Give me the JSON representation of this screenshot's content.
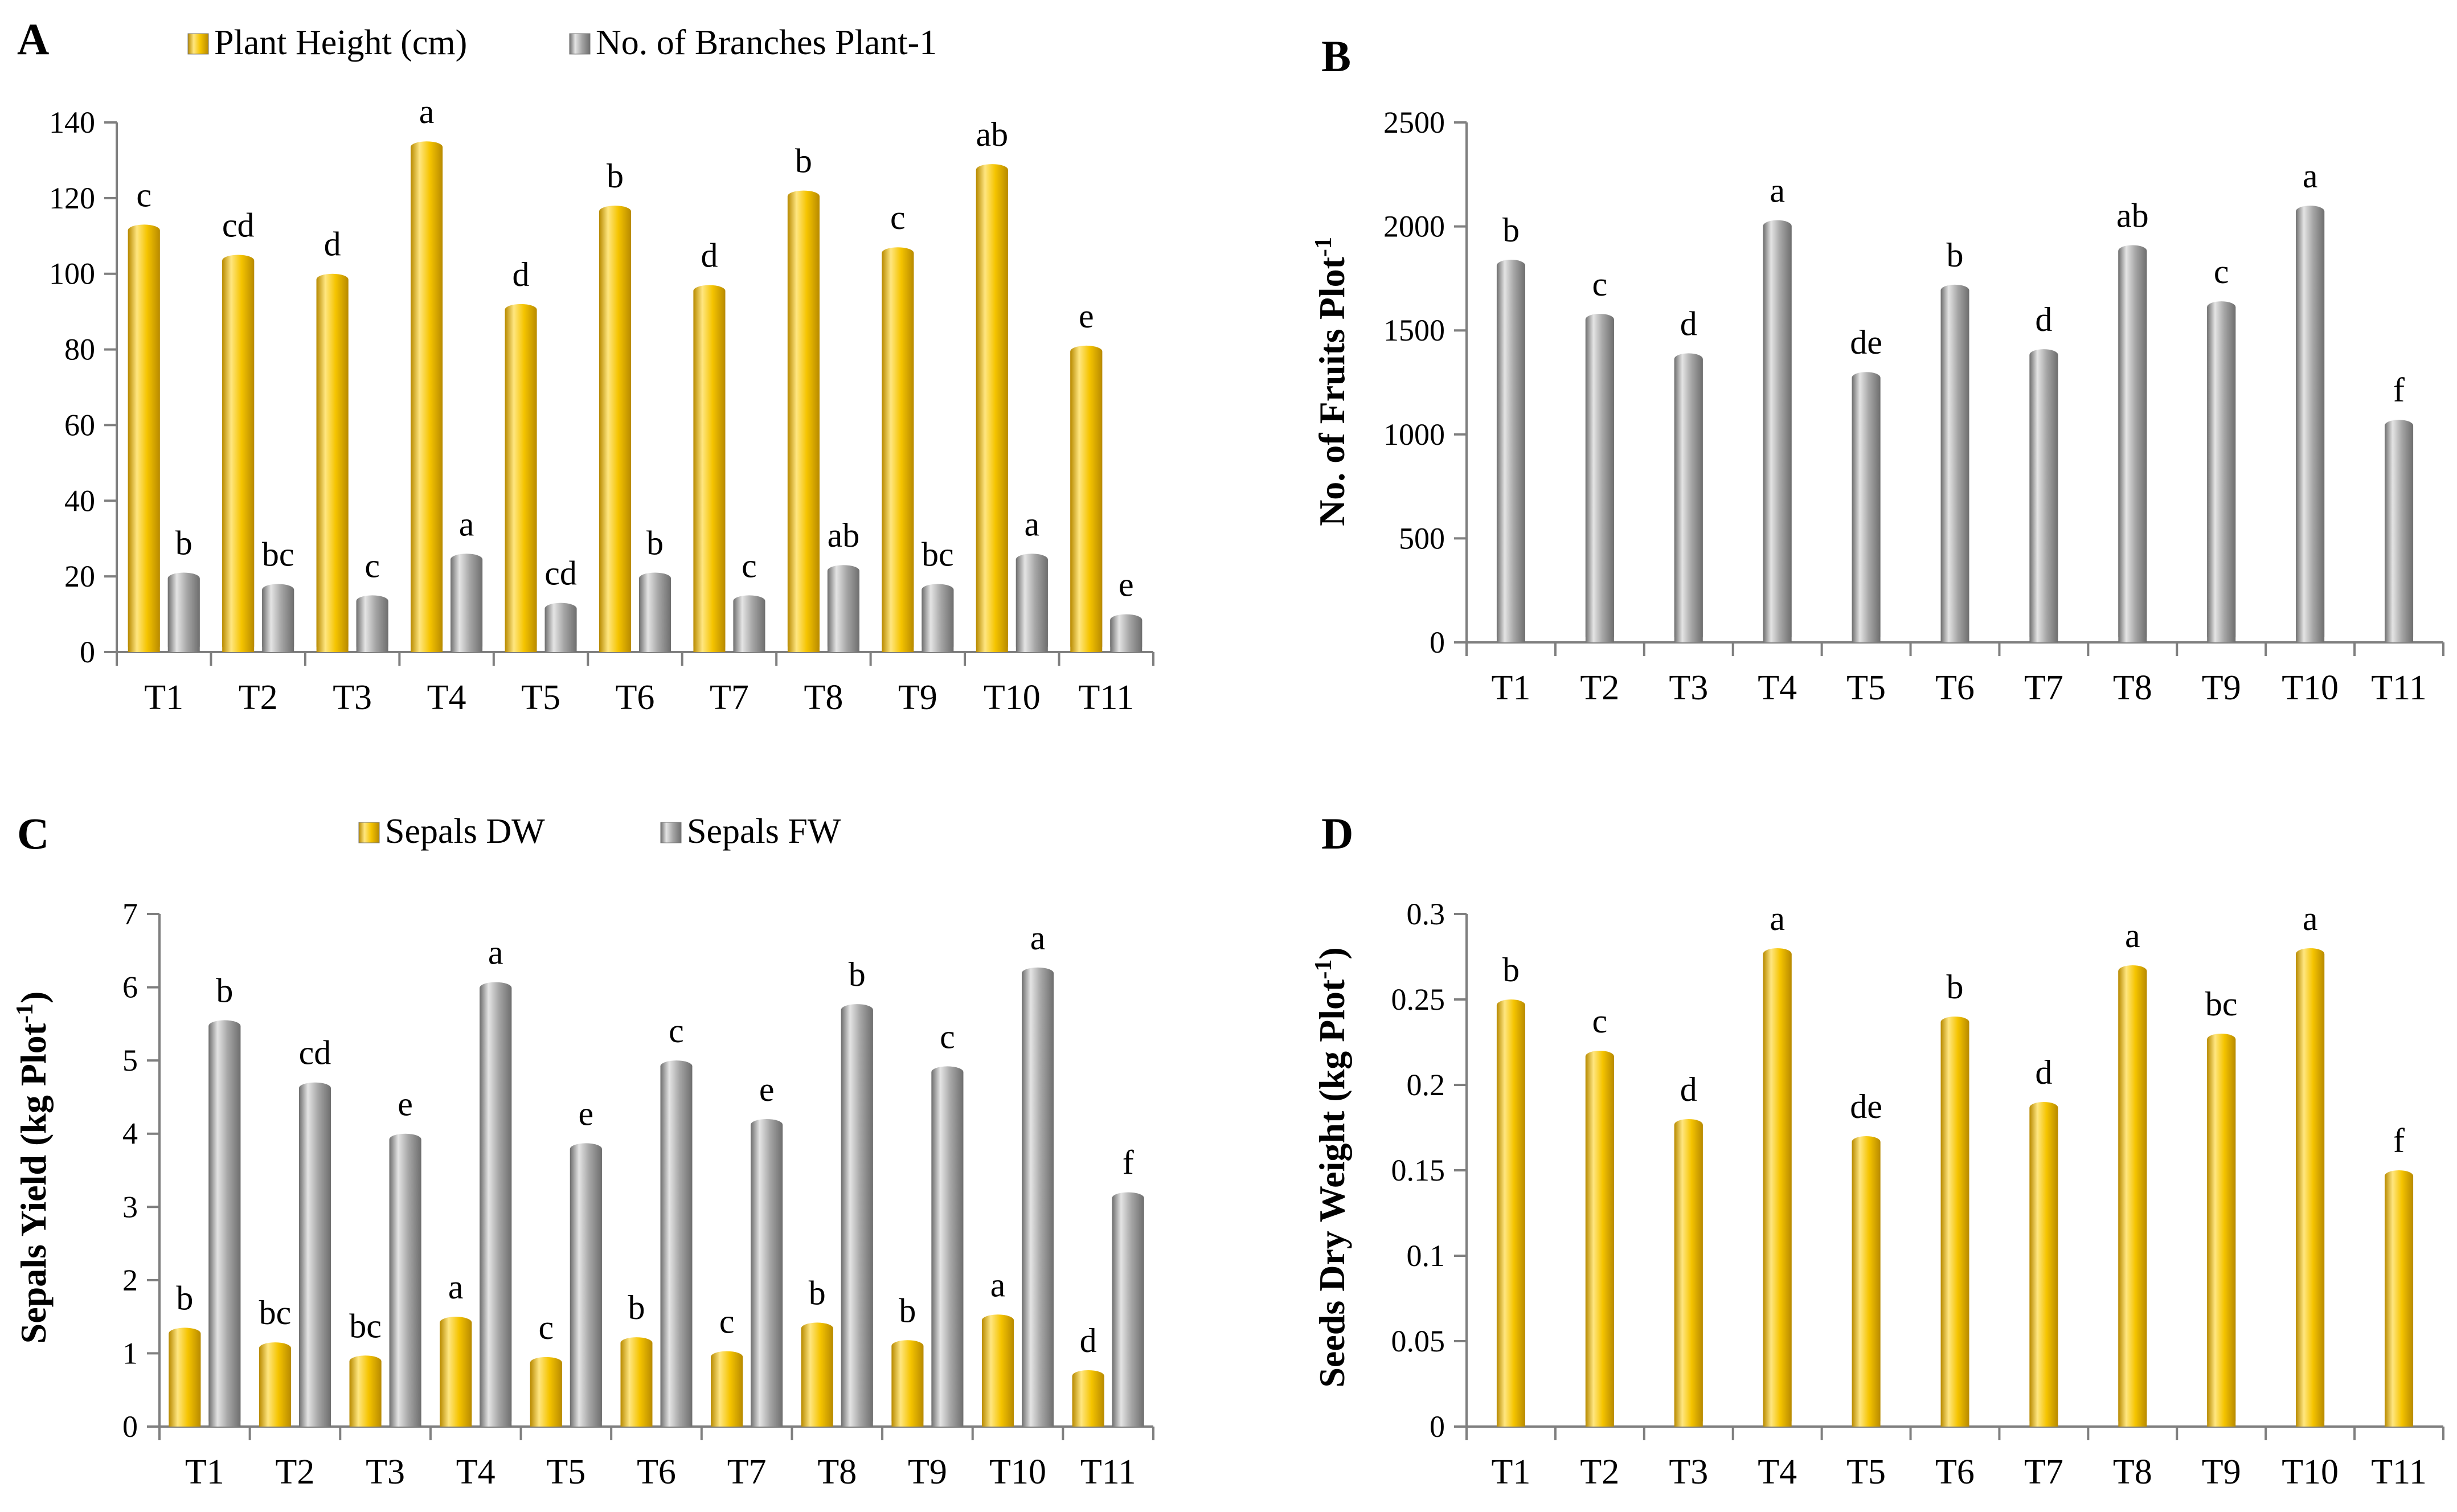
{
  "colors": {
    "gold": "#F5C400",
    "gold_light": "#FFE680",
    "gold_dark": "#B88A00",
    "gray": "#A6A6A6",
    "gray_light": "#E4E4E4",
    "gray_dark": "#6E6E6E"
  },
  "chart_data": [
    {
      "panel": "A",
      "type": "bar",
      "title": "",
      "xlabel": "",
      "ylabel": "",
      "categories": [
        "T1",
        "T2",
        "T3",
        "T4",
        "T5",
        "T6",
        "T7",
        "T8",
        "T9",
        "T10",
        "T11"
      ],
      "ylim": [
        0,
        140
      ],
      "yticks": [
        0,
        20,
        40,
        60,
        80,
        100,
        120,
        140
      ],
      "legend_position": "top",
      "series": [
        {
          "name": "Plant Height (cm)",
          "color": "gold",
          "values": [
            113,
            105,
            100,
            135,
            92,
            118,
            97,
            122,
            107,
            129,
            81
          ],
          "labels": [
            "c",
            "cd",
            "d",
            "a",
            "d",
            "b",
            "d",
            "b",
            "c",
            "ab",
            "e"
          ]
        },
        {
          "name": "No. of Branches Plant-1",
          "color": "gray",
          "values": [
            21,
            18,
            15,
            26,
            13,
            21,
            15,
            23,
            18,
            26,
            10
          ],
          "labels": [
            "b",
            "bc",
            "c",
            "a",
            "cd",
            "b",
            "c",
            "ab",
            "bc",
            "a",
            "e"
          ]
        }
      ]
    },
    {
      "panel": "B",
      "type": "bar",
      "title": "",
      "xlabel": "",
      "ylabel": "No. of Fruits Plot",
      "ylabel_sup": "-1",
      "categories": [
        "T1",
        "T2",
        "T3",
        "T4",
        "T5",
        "T6",
        "T7",
        "T8",
        "T9",
        "T10",
        "T11"
      ],
      "ylim": [
        0,
        2500
      ],
      "yticks": [
        0,
        500,
        1000,
        1500,
        2000,
        2500
      ],
      "series": [
        {
          "name": "No. of Fruits Plot-1",
          "color": "gray",
          "values": [
            1840,
            1580,
            1390,
            2030,
            1300,
            1720,
            1410,
            1910,
            1640,
            2100,
            1070
          ],
          "labels": [
            "b",
            "c",
            "d",
            "a",
            "de",
            "b",
            "d",
            "ab",
            "c",
            "a",
            "f"
          ]
        }
      ]
    },
    {
      "panel": "C",
      "type": "bar",
      "title": "",
      "xlabel": "",
      "ylabel": "Sepals Yield (kg Plot",
      "ylabel_sup": "-1",
      "ylabel_end": ")",
      "categories": [
        "T1",
        "T2",
        "T3",
        "T4",
        "T5",
        "T6",
        "T7",
        "T8",
        "T9",
        "T10",
        "T11"
      ],
      "ylim": [
        0,
        7
      ],
      "yticks": [
        0,
        1,
        2,
        3,
        4,
        5,
        6,
        7
      ],
      "legend_position": "top",
      "series": [
        {
          "name": "Sepals DW",
          "color": "gold",
          "values": [
            1.35,
            1.15,
            0.97,
            1.5,
            0.95,
            1.22,
            1.03,
            1.42,
            1.18,
            1.53,
            0.77
          ],
          "labels": [
            "b",
            "bc",
            "bc",
            "a",
            "c",
            "b",
            "c",
            "b",
            "b",
            "a",
            "d"
          ]
        },
        {
          "name": "Sepals FW",
          "color": "gray",
          "values": [
            5.55,
            4.7,
            4.0,
            6.07,
            3.87,
            5.0,
            4.2,
            5.77,
            4.92,
            6.27,
            3.2
          ],
          "labels": [
            "b",
            "cd",
            "e",
            "a",
            "e",
            "c",
            "e",
            "b",
            "c",
            "a",
            "f"
          ]
        }
      ]
    },
    {
      "panel": "D",
      "type": "bar",
      "title": "",
      "xlabel": "",
      "ylabel": "Seeds Dry Weight (kg Plot",
      "ylabel_sup": "-1",
      "ylabel_end": ")",
      "categories": [
        "T1",
        "T2",
        "T3",
        "T4",
        "T5",
        "T6",
        "T7",
        "T8",
        "T9",
        "T10",
        "T11"
      ],
      "ylim": [
        0,
        0.3
      ],
      "yticks": [
        0,
        0.05,
        0.1,
        0.15,
        0.2,
        0.25,
        0.3
      ],
      "series": [
        {
          "name": "Seeds Dry Weight",
          "color": "gold",
          "values": [
            0.25,
            0.22,
            0.18,
            0.28,
            0.17,
            0.24,
            0.19,
            0.27,
            0.23,
            0.28,
            0.15
          ],
          "labels": [
            "b",
            "c",
            "d",
            "a",
            "de",
            "b",
            "d",
            "a",
            "bc",
            "a",
            "f"
          ]
        }
      ]
    }
  ]
}
